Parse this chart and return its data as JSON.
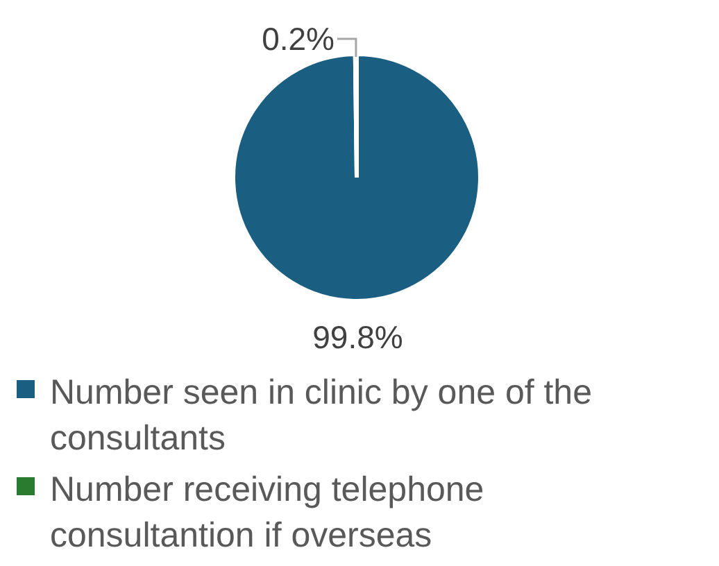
{
  "chart_data": {
    "type": "pie",
    "categories": [
      "Number seen in clinic by one of the consultants",
      "Number receiving telephone consultantion if overseas"
    ],
    "values": [
      99.8,
      0.2
    ],
    "colors": [
      "#1a5e82",
      "#2a7a2f"
    ],
    "value_labels": [
      "99.8%",
      "0.2%"
    ],
    "legend": "bottom"
  }
}
